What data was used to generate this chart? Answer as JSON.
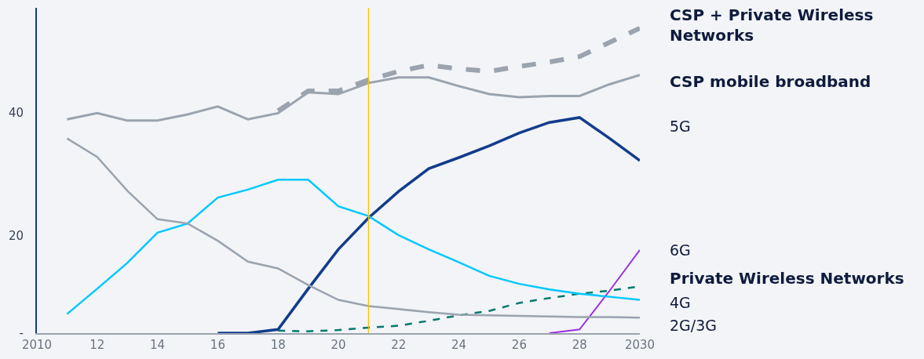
{
  "chart_data": {
    "type": "line",
    "xlim": [
      2010,
      2030
    ],
    "xticks": [
      2010,
      {
        "value": 2012,
        "label": "12"
      },
      {
        "value": 2014,
        "label": "14"
      },
      {
        "value": 2016,
        "label": "16"
      },
      {
        "value": 2018,
        "label": "18"
      },
      {
        "value": 2020,
        "label": "20"
      },
      {
        "value": 2022,
        "label": "22"
      },
      {
        "value": 2024,
        "label": "24"
      },
      {
        "value": 2026,
        "label": "26"
      },
      {
        "value": 2028,
        "label": "28"
      },
      2030
    ],
    "ylim": [
      4.2,
      57
    ],
    "yticks": [
      {
        "value": 4.2,
        "label": "-"
      },
      20,
      40
    ],
    "grid": false,
    "legend": false,
    "marker": "none",
    "ref_lines": [
      {
        "axis": "x",
        "value": 2021,
        "color": "#ffc000"
      }
    ],
    "series": [
      {
        "name": "CSP + Private Wireless Networks",
        "color": "#9aa3ae",
        "line_style": "dashed",
        "x": [
          2018,
          2019,
          2020,
          2021,
          2022,
          2023,
          2024,
          2025,
          2026,
          2027,
          2028,
          2029,
          2030
        ],
        "values": [
          40.3,
          43.5,
          43.5,
          45.3,
          46.7,
          47.7,
          47.1,
          46.7,
          47.5,
          48.2,
          49.1,
          51.4,
          53.7
        ]
      },
      {
        "name": "CSP mobile broadband",
        "color": "#9aa3ae",
        "line_style": "solid",
        "x": [
          2011,
          2012,
          2013,
          2014,
          2015,
          2016,
          2017,
          2018,
          2019,
          2020,
          2021,
          2022,
          2023,
          2024,
          2025,
          2026,
          2027,
          2028,
          2029,
          2030
        ],
        "values": [
          38.9,
          39.9,
          38.7,
          38.7,
          39.7,
          41.0,
          38.9,
          39.9,
          43.3,
          43.0,
          44.8,
          45.7,
          45.7,
          44.3,
          43.0,
          42.5,
          42.7,
          42.7,
          44.6,
          46.1
        ]
      },
      {
        "name": "5G",
        "color": "#123c8c",
        "line_style": "solid",
        "x": [
          2016,
          2017,
          2018,
          2019,
          2020,
          2021,
          2022,
          2023,
          2024,
          2025,
          2026,
          2027,
          2028,
          2029,
          2030
        ],
        "values": [
          4.2,
          4.2,
          4.8,
          11.4,
          17.8,
          22.9,
          27.2,
          30.9,
          32.7,
          34.6,
          36.7,
          38.4,
          39.2,
          35.8,
          32.2
        ]
      },
      {
        "name": "6G",
        "color": "#9b30e0",
        "line_style": "solid",
        "x": [
          2027,
          2028,
          2029,
          2030
        ],
        "values": [
          4.2,
          4.8,
          11.1,
          17.7
        ]
      },
      {
        "name": "Private Wireless Networks",
        "color": "#007a6e",
        "line_style": "dashed",
        "x": [
          2018,
          2019,
          2020,
          2021,
          2022,
          2023,
          2024,
          2025,
          2026,
          2027,
          2028,
          2029,
          2030
        ],
        "values": [
          4.6,
          4.5,
          4.7,
          5.1,
          5.4,
          6.2,
          7.1,
          7.8,
          9.1,
          9.9,
          10.6,
          11.1,
          11.8
        ]
      },
      {
        "name": "4G",
        "color": "#00c8ff",
        "line_style": "solid",
        "x": [
          2011,
          2012,
          2013,
          2014,
          2015,
          2016,
          2017,
          2018,
          2019,
          2020,
          2021,
          2022,
          2023,
          2024,
          2025,
          2026,
          2027,
          2028,
          2029,
          2030
        ],
        "values": [
          7.3,
          11.4,
          15.6,
          20.5,
          22.0,
          26.2,
          27.5,
          29.1,
          29.1,
          24.8,
          23.2,
          20.1,
          17.8,
          15.7,
          13.5,
          12.2,
          11.3,
          10.6,
          10.1,
          9.6
        ]
      },
      {
        "name": "2G/3G",
        "color": "#9aa3ae",
        "line_style": "solid",
        "x": [
          2011,
          2012,
          2013,
          2014,
          2015,
          2016,
          2017,
          2018,
          2019,
          2020,
          2021,
          2022,
          2023,
          2024,
          2025,
          2026,
          2027,
          2028,
          2029,
          2030
        ],
        "values": [
          35.8,
          32.8,
          27.3,
          22.7,
          22.0,
          19.2,
          15.8,
          14.7,
          12.0,
          9.6,
          8.6,
          8.1,
          7.6,
          7.2,
          7.1,
          7.0,
          6.9,
          6.8,
          6.8,
          6.7
        ]
      }
    ]
  }
}
